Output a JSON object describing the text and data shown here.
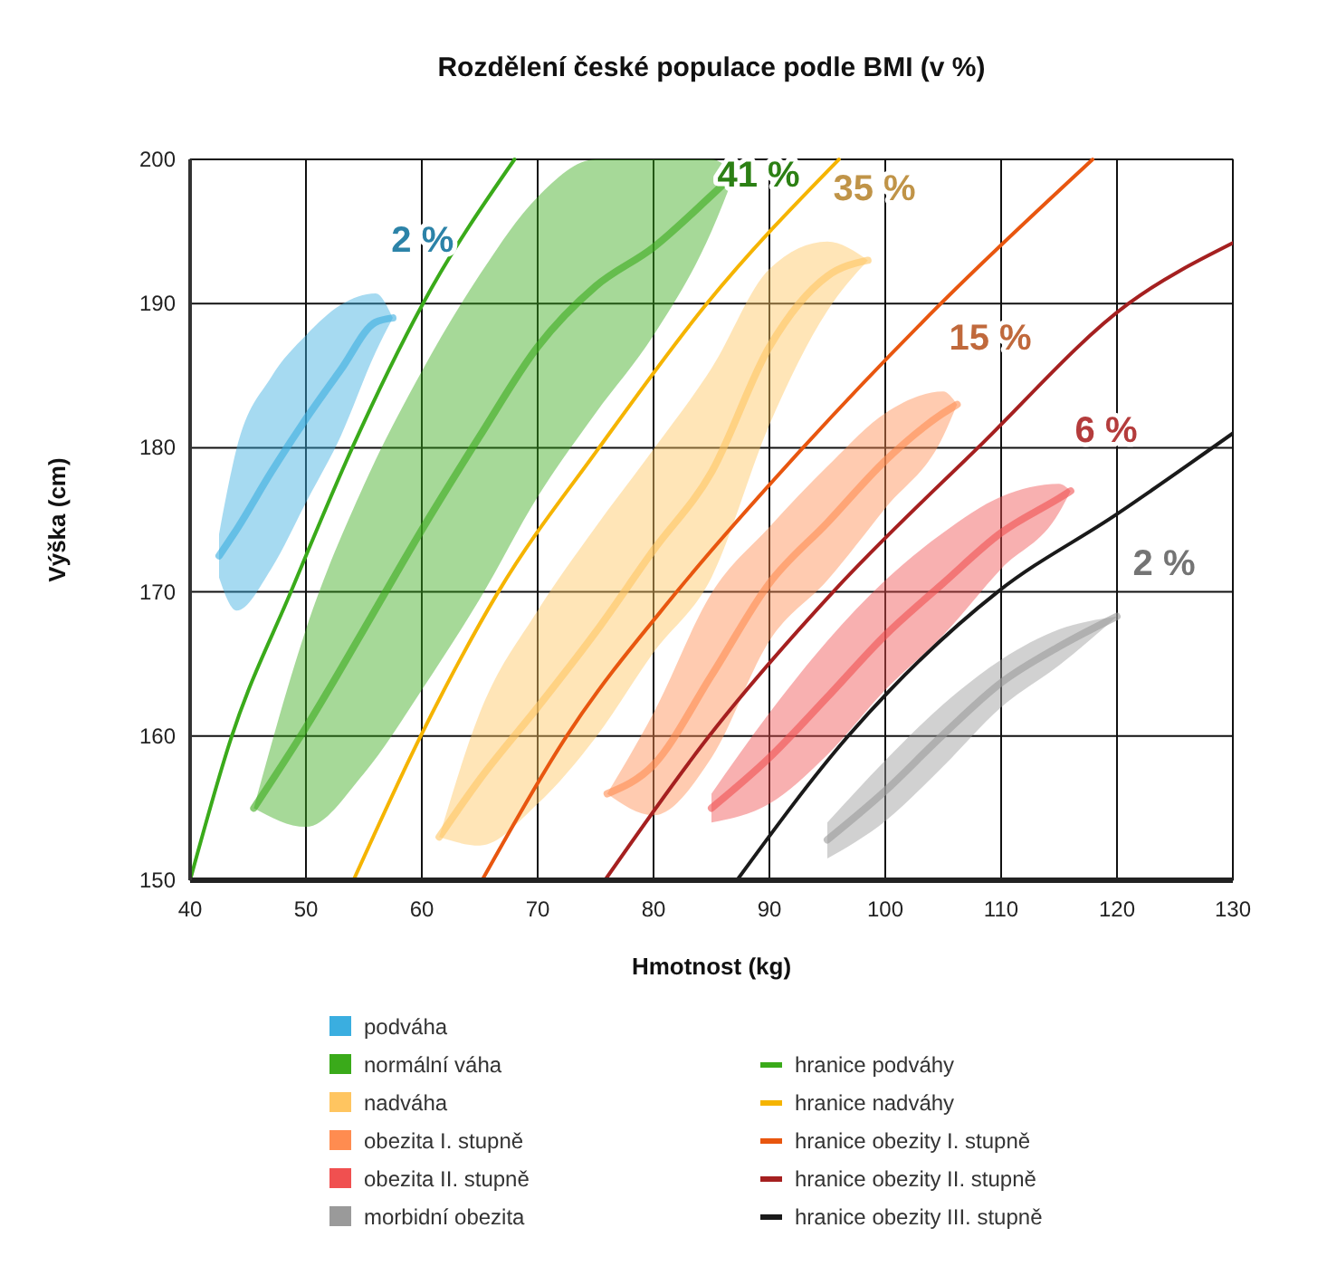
{
  "chart_data": {
    "type": "line",
    "title": "Rozdělení české populace podle BMI (v %)",
    "xlabel": "Hmotnost (kg)",
    "ylabel": "Výška (cm)",
    "xlim": [
      40,
      130
    ],
    "xticks": [
      40,
      50,
      60,
      70,
      80,
      90,
      100,
      110,
      120,
      130
    ],
    "ylim": [
      150,
      200
    ],
    "yticks": [
      150,
      160,
      170,
      180,
      190,
      200
    ],
    "grid": true,
    "legend": "bottom",
    "series": [
      {
        "name": "podváha",
        "color": "#3aaee0",
        "x": [
          42.5,
          44,
          47,
          50,
          53,
          56,
          57.5
        ],
        "values": [
          172.5,
          174.3,
          178.3,
          182,
          185.4,
          188.7,
          189
        ],
        "lower": [
          171,
          168.7,
          171.6,
          176.2,
          180.8,
          186.6,
          189
        ],
        "upper": [
          174,
          179.9,
          184.9,
          187.8,
          189.9,
          190.7,
          189
        ]
      },
      {
        "name": "normální váha",
        "color": "#3aaa1a",
        "x": [
          45.5,
          50,
          55,
          60,
          65,
          70,
          75,
          80,
          85,
          87
        ],
        "values": [
          155,
          160.6,
          167.4,
          174.3,
          180.8,
          187,
          191.2,
          193.9,
          197.5,
          199
        ],
        "lower": [
          155,
          153.7,
          157.4,
          163.2,
          169.5,
          176.6,
          182.4,
          187.8,
          195,
          199
        ],
        "upper": [
          155,
          167.4,
          177.4,
          185.3,
          192,
          197.4,
          200,
          200,
          200,
          199
        ]
      },
      {
        "name": "nadváha",
        "color": "#ffc560",
        "x": [
          61.5,
          65,
          70,
          75,
          80,
          85,
          90,
          95,
          98.5
        ],
        "values": [
          153,
          157,
          162,
          167.2,
          172.9,
          178.3,
          187,
          191.9,
          193
        ],
        "lower": [
          153,
          152.4,
          155.3,
          159.9,
          165.8,
          171,
          181.6,
          189.5,
          193
        ],
        "upper": [
          153,
          161.6,
          168.7,
          174.5,
          179.9,
          185.5,
          192.4,
          194.3,
          193
        ]
      },
      {
        "name": "obezita I. stupně",
        "color": "#ff8c50",
        "x": [
          76,
          80,
          85,
          90,
          95,
          100,
          105,
          106.2
        ],
        "values": [
          156,
          158,
          164.2,
          170.6,
          174.8,
          179.1,
          182.4,
          183
        ],
        "lower": [
          156,
          154.5,
          158.5,
          166.6,
          170.8,
          175.8,
          180.8,
          183
        ],
        "upper": [
          156,
          161.6,
          169.9,
          174.5,
          178.7,
          182.4,
          183.9,
          183
        ]
      },
      {
        "name": "obezita II. stupně",
        "color": "#f05050",
        "x": [
          85,
          90,
          95,
          100,
          105,
          110,
          115,
          116
        ],
        "values": [
          155,
          158.5,
          162.7,
          167,
          170.6,
          174.1,
          176.5,
          177
        ],
        "lower": [
          154,
          155.3,
          158.7,
          163.2,
          167,
          171.6,
          175.5,
          177
        ],
        "upper": [
          156,
          161.6,
          166.6,
          170.8,
          174.1,
          176.6,
          177.5,
          177
        ]
      },
      {
        "name": "morbidní obezita",
        "color": "#9a9a9a",
        "x": [
          95,
          100,
          105,
          110,
          115,
          120
        ],
        "values": [
          152.8,
          156.2,
          160.1,
          163.7,
          166.2,
          168.3
        ],
        "lower": [
          151.5,
          154.1,
          157.9,
          162,
          164.9,
          168.3
        ],
        "upper": [
          154,
          158.3,
          162.2,
          165.3,
          167.4,
          168.3
        ]
      },
      {
        "name": "hranice podváhy",
        "type": "line",
        "color": "#3aaa1a",
        "x": [
          40,
          43.6,
          48.7,
          54,
          60.1,
          68
        ],
        "values": [
          150,
          160,
          170,
          180,
          190,
          200
        ]
      },
      {
        "name": "hranice nadváhy",
        "type": "line",
        "color": "#f5b400",
        "x": [
          54.1,
          59.9,
          66.6,
          75.3,
          84.6,
          96
        ],
        "values": [
          150,
          160,
          170,
          180,
          190,
          200
        ]
      },
      {
        "name": "hranice obezity I. stupně",
        "type": "line",
        "color": "#e8560f",
        "x": [
          65.2,
          72.5,
          82,
          92.9,
          104.8,
          117.9
        ],
        "values": [
          150,
          160,
          170,
          180,
          190,
          200
        ]
      },
      {
        "name": "hranice obezity II. stupně",
        "type": "line",
        "color": "#a52020",
        "x": [
          75.8,
          84.8,
          95.5,
          108,
          121,
          130
        ],
        "values": [
          150,
          160,
          170,
          180,
          190,
          194.2
        ]
      },
      {
        "name": "hranice obezity III. stupně",
        "type": "line",
        "color": "#1a1a1a",
        "x": [
          87.2,
          96.8,
          109.7,
          120,
          130
        ],
        "values": [
          150,
          160,
          170,
          175.4,
          181
        ]
      }
    ],
    "annotations": [
      "2 %",
      "41 %",
      "35 %",
      "15 %",
      "6 %",
      "2 %"
    ]
  }
}
